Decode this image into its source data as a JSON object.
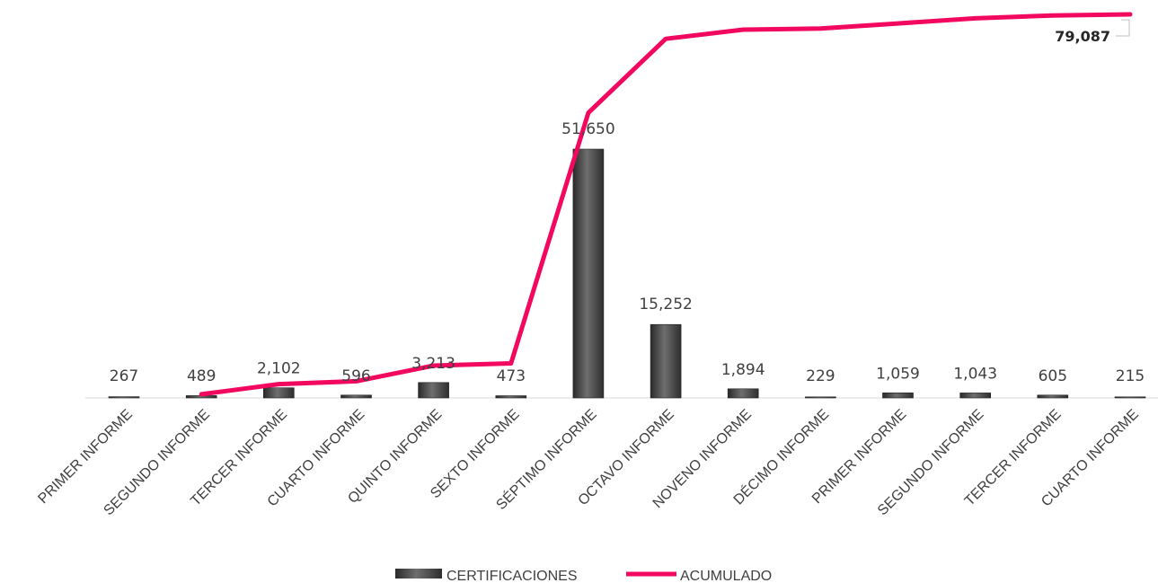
{
  "chart_data": {
    "type": "bar",
    "title": "",
    "xlabel": "",
    "ylabel": "",
    "categories": [
      "PRIMER INFORME",
      "SEGUNDO INFORME",
      "TERCER INFORME",
      "CUARTO INFORME",
      "QUINTO INFORME",
      "SEXTO INFORME",
      "SÉPTIMO INFORME",
      "OCTAVO INFORME",
      "NOVENO INFORME",
      "DÉCIMO INFORME",
      "PRIMER INFORME",
      "SEGUNDO INFORME",
      "TERCER INFORME",
      "CUARTO INFORME"
    ],
    "series": [
      {
        "name": "CERTIFICACIONES",
        "type": "bar",
        "values": [
          267,
          489,
          2102,
          596,
          3213,
          473,
          51650,
          15252,
          1894,
          229,
          1059,
          1043,
          605,
          215
        ],
        "labels": [
          "267",
          "489",
          "2,102",
          "596",
          "3,213",
          "473",
          "51,650",
          "15,252",
          "1,894",
          "229",
          "1,059",
          "1,043",
          "605",
          "215"
        ],
        "color": "#595959"
      },
      {
        "name": "ACUMULADO",
        "type": "line",
        "values": [
          267,
          756,
          2858,
          3454,
          6667,
          7140,
          58790,
          74042,
          75936,
          76165,
          77224,
          78267,
          78872,
          79087
        ],
        "final_label": "79,087",
        "color": "#F2085F"
      }
    ],
    "grid": false,
    "legend": "bottom"
  }
}
